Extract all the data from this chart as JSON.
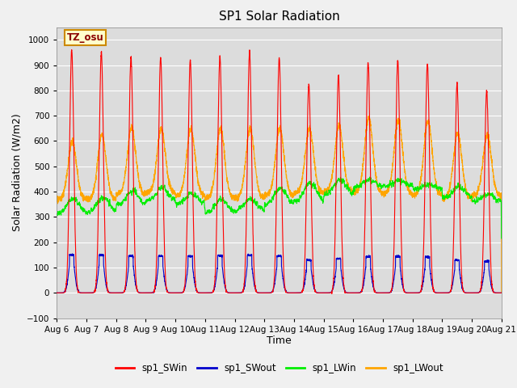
{
  "title": "SP1 Solar Radiation",
  "xlabel": "Time",
  "ylabel": "Solar Radiation (W/m2)",
  "ylim": [
    -100,
    1050
  ],
  "yticks": [
    -100,
    0,
    100,
    200,
    300,
    400,
    500,
    600,
    700,
    800,
    900,
    1000
  ],
  "plot_bg": "#dcdcdc",
  "fig_bg": "#f0f0f0",
  "grid_color": "#ffffff",
  "colors": {
    "SWin": "#ff0000",
    "SWout": "#0000cc",
    "LWin": "#00ee00",
    "LWout": "#ffa500"
  },
  "annotation_text": "TZ_osu",
  "annotation_color": "#8b0000",
  "annotation_bg": "#ffffcc",
  "annotation_edge": "#cc8800",
  "legend_labels": [
    "sp1_SWin",
    "sp1_SWout",
    "sp1_LWin",
    "sp1_LWout"
  ],
  "n_days": 15,
  "start_day": 6,
  "title_fontsize": 11,
  "axis_label_fontsize": 9,
  "tick_fontsize": 7.5
}
